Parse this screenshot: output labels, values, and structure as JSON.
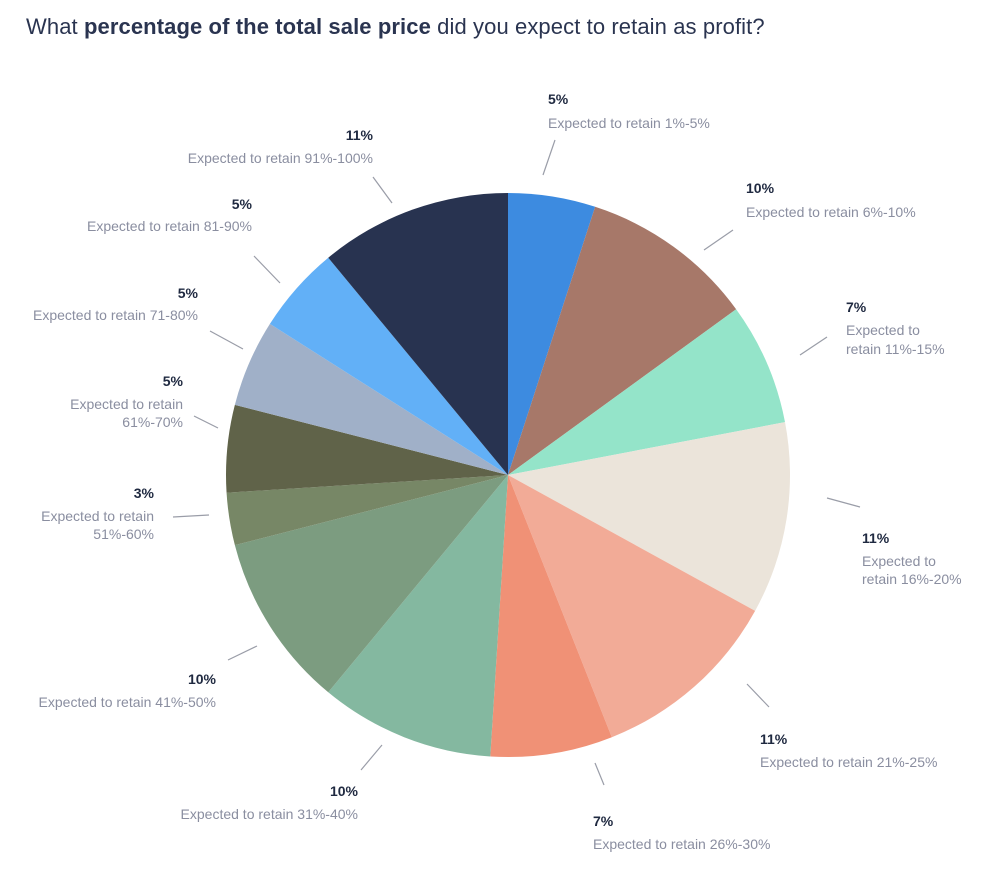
{
  "title": {
    "prefix": "What ",
    "bold": "percentage of the total sale price",
    "suffix": " did you expect to retain as profit?"
  },
  "chart_data": {
    "type": "pie",
    "title": "What percentage of the total sale price did you expect to retain as profit?",
    "categories": [
      "Expected to retain 1%-5%",
      "Expected to retain 6%-10%",
      "Expected to retain 11%-15%",
      "Expected to retain 16%-20%",
      "Expected to retain 21%-25%",
      "Expected to retain 26%-30%",
      "Expected to retain 31%-40%",
      "Expected to retain 41%-50%",
      "Expected to retain 51%-60%",
      "Expected to retain 61%-70%",
      "Expected to retain 71-80%",
      "Expected to retain 81-90%",
      "Expected to retain 91%-100%"
    ],
    "values": [
      5,
      10,
      7,
      11,
      11,
      7,
      10,
      10,
      3,
      5,
      5,
      5,
      11
    ],
    "value_labels": [
      "5%",
      "10%",
      "7%",
      "11%",
      "11%",
      "7%",
      "10%",
      "10%",
      "3%",
      "5%",
      "5%",
      "5%",
      "11%"
    ],
    "colors": [
      "#3d8be0",
      "#a77869",
      "#94e4c9",
      "#ebe4da",
      "#f2ab97",
      "#f09176",
      "#84b8a0",
      "#7c9c80",
      "#778766",
      "#606349",
      "#a0b0c8",
      "#62b0f7",
      "#283350"
    ],
    "start": "top",
    "direction": "clockwise"
  }
}
